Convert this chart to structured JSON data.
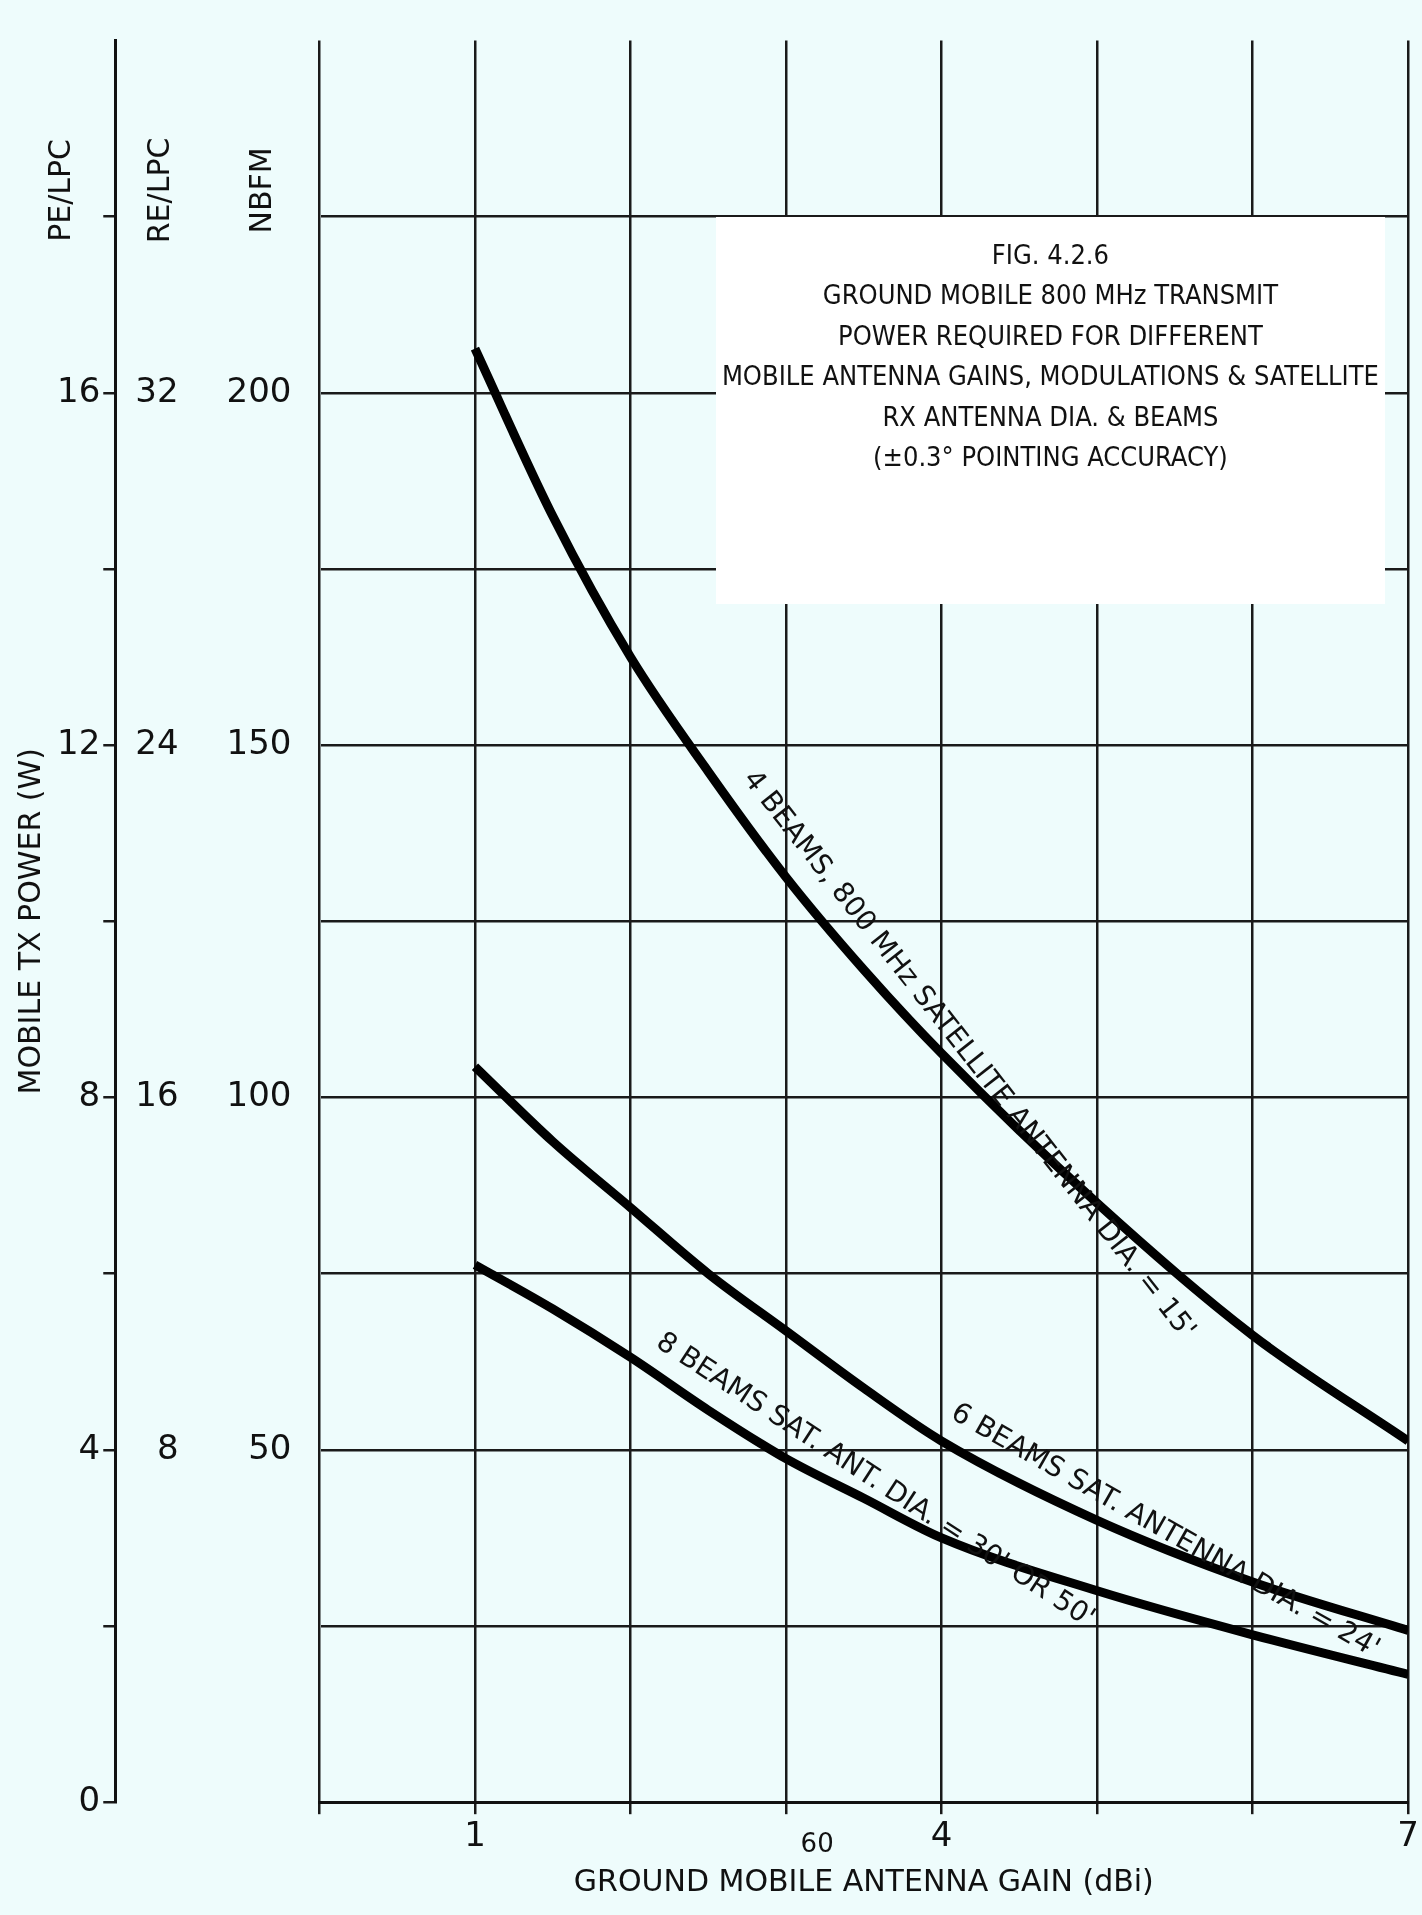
{
  "chart_data": {
    "type": "line",
    "title": "FIG. 4.2.6",
    "subtitle": "GROUND MOBILE 800 MHz TRANSMIT\nPOWER REQUIRED FOR DIFFERENT\nMOBILE ANTENNA GAINS, MODULATIONS & SATELLITE\nRX ANTENNA DIA. & BEAMS\n(±0.3° POINTING ACCURACY)",
    "xlabel": "GROUND MOBILE ANTENNA GAIN (dBi)",
    "ylabel": "MOBILE TX POWER (W)",
    "y2label": "RE/LPC",
    "y3label": "NBFM",
    "annotations": [
      "PE/LPC",
      "60"
    ],
    "x": [
      1,
      1.5,
      2,
      2.5,
      3,
      3.5,
      4,
      5,
      6,
      7
    ],
    "series": [
      {
        "name": "4 BEAMS, 800 MHz SATELLITE ANTENNA DIA. = 15'",
        "color": "#000000",
        "values": [
          16.5,
          14.6,
          13.0,
          11.7,
          10.5,
          9.45,
          8.5,
          6.8,
          5.3,
          4.1
        ]
      },
      {
        "name": "6 BEAMS SAT. ANTENNA DIA. = 24'",
        "color": "#000000",
        "values": [
          8.35,
          7.5,
          6.75,
          6.0,
          5.35,
          4.7,
          4.1,
          3.2,
          2.5,
          1.95
        ]
      },
      {
        "name": "8 BEAMS SAT. ANT. DIA. = 30' OR 50'",
        "color": "#000000",
        "values": [
          6.1,
          5.6,
          5.05,
          4.45,
          3.9,
          3.45,
          3.0,
          2.4,
          1.9,
          1.45
        ]
      }
    ],
    "xlim": [
      0,
      7
    ],
    "xticks": [
      {
        "value": 0,
        "label": null
      },
      {
        "value": 1,
        "label": "1"
      },
      {
        "value": 2,
        "label": null
      },
      {
        "value": 3,
        "label": null
      },
      {
        "value": 4,
        "label": "4"
      },
      {
        "value": 5,
        "label": null
      },
      {
        "value": 6,
        "label": null
      },
      {
        "value": 7,
        "label": "7"
      }
    ],
    "ylim": [
      0,
      20
    ],
    "yticks": [
      0,
      {
        "value": 2,
        "label": null
      },
      4,
      {
        "value": 6,
        "label": null
      },
      8,
      {
        "value": 10,
        "label": null
      },
      12,
      {
        "value": 14,
        "label": null
      },
      16,
      {
        "value": 18,
        "label": null
      }
    ],
    "y2lim": [
      0,
      40
    ],
    "y2ticks": [
      8,
      16,
      24,
      32
    ],
    "y3lim": [
      0,
      250
    ],
    "y3ticks": [
      50,
      100,
      150,
      200
    ],
    "grid": true,
    "legend": false,
    "marker": "none",
    "line_style": "solid"
  }
}
